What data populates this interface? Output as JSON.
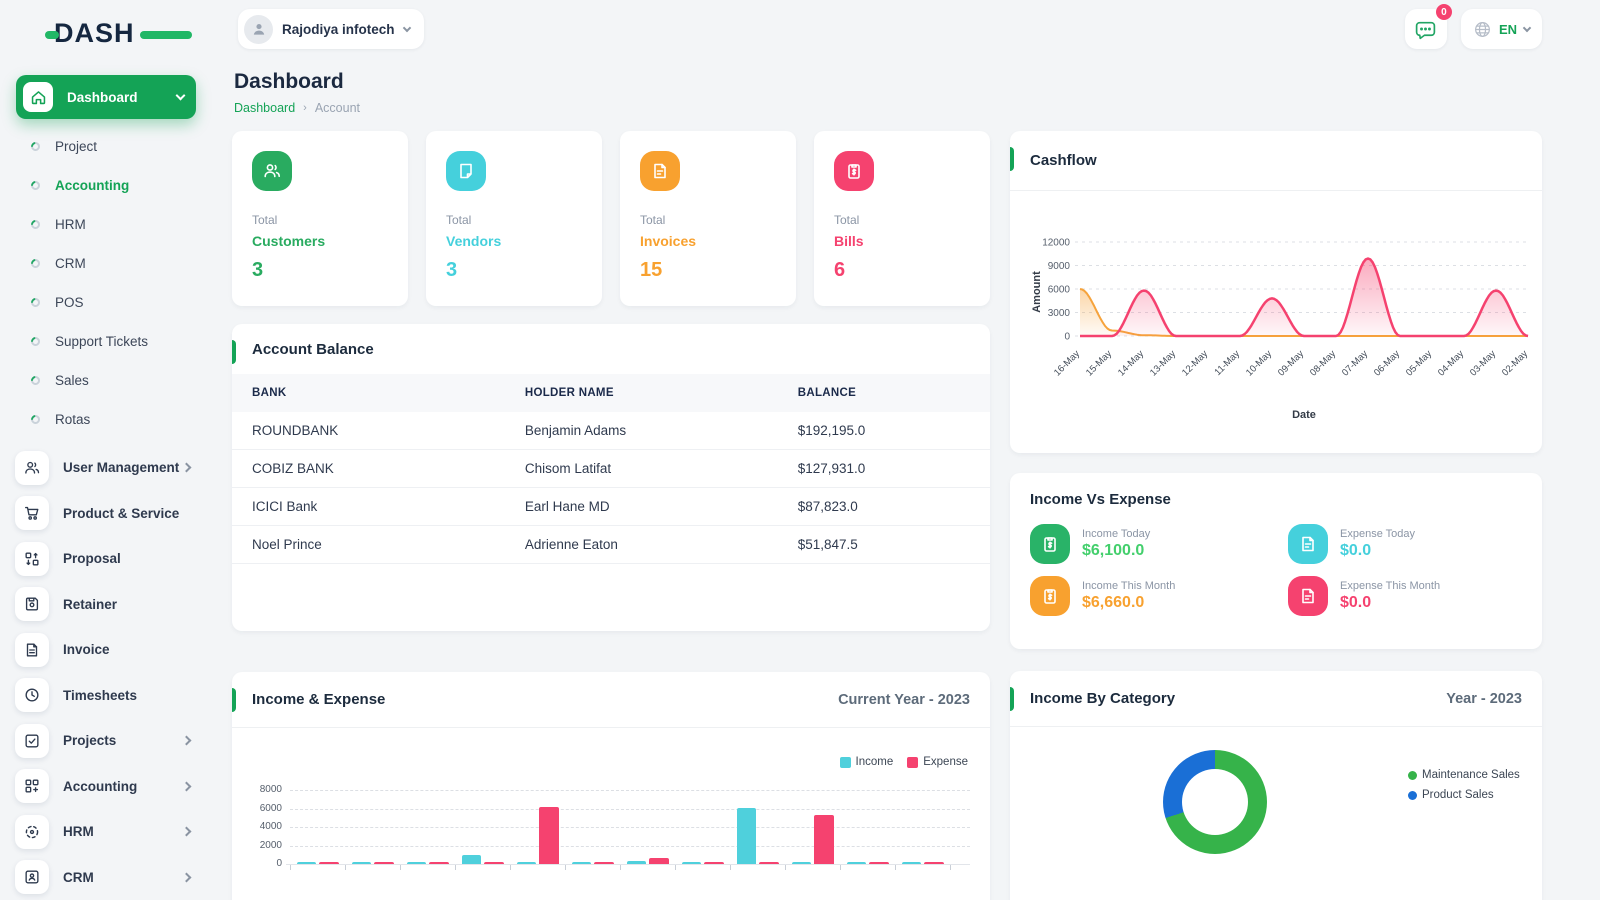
{
  "brand": {
    "logo_text": "DASH",
    "accent_color": "#21b766"
  },
  "topbar": {
    "workspace_name": "Rajodiya infotech",
    "messages_badge": "0",
    "language": "EN"
  },
  "sidebar": {
    "active_item": {
      "label": "Dashboard",
      "icon": "home-icon"
    },
    "sub_items": [
      {
        "label": "Project",
        "active": false
      },
      {
        "label": "Accounting",
        "active": true
      },
      {
        "label": "HRM",
        "active": false
      },
      {
        "label": "CRM",
        "active": false
      },
      {
        "label": "POS",
        "active": false
      },
      {
        "label": "Support Tickets",
        "active": false
      },
      {
        "label": "Sales",
        "active": false
      },
      {
        "label": "Rotas",
        "active": false
      }
    ],
    "menu_items": [
      {
        "label": "User Management",
        "icon": "users-icon",
        "has_chevron": true
      },
      {
        "label": "Product & Service",
        "icon": "cart-icon",
        "has_chevron": false
      },
      {
        "label": "Proposal",
        "icon": "proposal-icon",
        "has_chevron": false
      },
      {
        "label": "Retainer",
        "icon": "retainer-icon",
        "has_chevron": false
      },
      {
        "label": "Invoice",
        "icon": "invoice-icon",
        "has_chevron": false
      },
      {
        "label": "Timesheets",
        "icon": "clock-icon",
        "has_chevron": false
      },
      {
        "label": "Projects",
        "icon": "projects-icon",
        "has_chevron": true
      },
      {
        "label": "Accounting",
        "icon": "accounting-icon",
        "has_chevron": true
      },
      {
        "label": "HRM",
        "icon": "hrm-icon",
        "has_chevron": true
      },
      {
        "label": "CRM",
        "icon": "crm-icon",
        "has_chevron": true
      }
    ]
  },
  "page": {
    "title": "Dashboard",
    "breadcrumb_link": "Dashboard",
    "breadcrumb_current": "Account"
  },
  "stats": [
    {
      "top": "Total",
      "label": "Customers",
      "value": "3",
      "color": "#29ab60",
      "icon": "customers-icon"
    },
    {
      "top": "Total",
      "label": "Vendors",
      "value": "3",
      "color": "#45d0dc",
      "icon": "vendors-icon"
    },
    {
      "top": "Total",
      "label": "Invoices",
      "value": "15",
      "color": "#f8a12f",
      "icon": "invoices-icon"
    },
    {
      "top": "Total",
      "label": "Bills",
      "value": "6",
      "color": "#f5426f",
      "icon": "bills-icon"
    }
  ],
  "account_balance": {
    "title": "Account Balance",
    "columns": [
      "BANK",
      "HOLDER NAME",
      "BALANCE"
    ],
    "rows": [
      [
        "ROUNDBANK",
        "Benjamin Adams",
        "$192,195.0"
      ],
      [
        "COBIZ BANK",
        "Chisom Latifat",
        "$127,931.0"
      ],
      [
        "ICICI Bank",
        "Earl Hane MD",
        "$87,823.0"
      ],
      [
        "Noel Prince",
        "Adrienne Eaton",
        "$51,847.5"
      ]
    ]
  },
  "income_vs_expense": {
    "title": "Income Vs Expense",
    "items": [
      {
        "label": "Income Today",
        "value": "$6,100.0",
        "color": "#29b368",
        "value_color": "#43cf6c",
        "icon": "income-clipboard-icon"
      },
      {
        "label": "Expense Today",
        "value": "$0.0",
        "color": "#45d0dc",
        "value_color": "#45d0dc",
        "icon": "expense-file-icon"
      },
      {
        "label": "Income This Month",
        "value": "$6,660.0",
        "color": "#f8a12f",
        "value_color": "#f8a12f",
        "icon": "income-clipboard-icon"
      },
      {
        "label": "Expense This Month",
        "value": "$0.0",
        "color": "#f5426f",
        "value_color": "#f5426f",
        "icon": "expense-file-icon"
      }
    ]
  },
  "chart_data": [
    {
      "id": "cashflow",
      "type": "area",
      "title": "Cashflow",
      "xlabel": "Date",
      "ylabel": "Amount",
      "x": [
        "16-May",
        "15-May",
        "14-May",
        "13-May",
        "12-May",
        "11-May",
        "10-May",
        "09-May",
        "08-May",
        "07-May",
        "06-May",
        "05-May",
        "04-May",
        "03-May",
        "02-May"
      ],
      "ylim": [
        0,
        12000
      ],
      "yticks": [
        0,
        3000,
        6000,
        9000,
        12000
      ],
      "grid": "dashed",
      "legend_position": "none",
      "series": [
        {
          "name": "orange-series",
          "color": "#f6a33c",
          "values": [
            6000,
            700,
            100,
            0,
            0,
            0,
            0,
            0,
            0,
            0,
            0,
            0,
            0,
            0,
            0
          ]
        },
        {
          "name": "pink-series",
          "color": "#f5426f",
          "values": [
            0,
            0,
            5800,
            0,
            0,
            0,
            4800,
            0,
            0,
            9900,
            0,
            0,
            0,
            5800,
            0
          ]
        }
      ]
    },
    {
      "id": "income_expense",
      "type": "bar",
      "title": "Income & Expense",
      "subtitle": "Current Year - 2023",
      "ylim": [
        0,
        8000
      ],
      "yticks": [
        0,
        2000,
        4000,
        6000,
        8000
      ],
      "grid": "dashed",
      "legend": [
        "Income",
        "Expense"
      ],
      "legend_position": "top-right",
      "series": [
        {
          "name": "Income",
          "color": "#4fd0dc",
          "values": [
            250,
            200,
            200,
            950,
            150,
            200,
            350,
            200,
            6100,
            150,
            150,
            200
          ]
        },
        {
          "name": "Expense",
          "color": "#f5426f",
          "values": [
            150,
            200,
            200,
            150,
            6200,
            200,
            600,
            200,
            150,
            5300,
            200,
            200
          ]
        }
      ]
    },
    {
      "id": "income_by_category",
      "type": "donut",
      "title": "Income By Category",
      "subtitle": "Year - 2023",
      "legend_position": "right",
      "slices": [
        {
          "label": "Maintenance Sales",
          "color": "#36b34a",
          "percent": 70
        },
        {
          "label": "Product Sales",
          "color": "#1a6fd6",
          "percent": 30
        }
      ]
    }
  ]
}
